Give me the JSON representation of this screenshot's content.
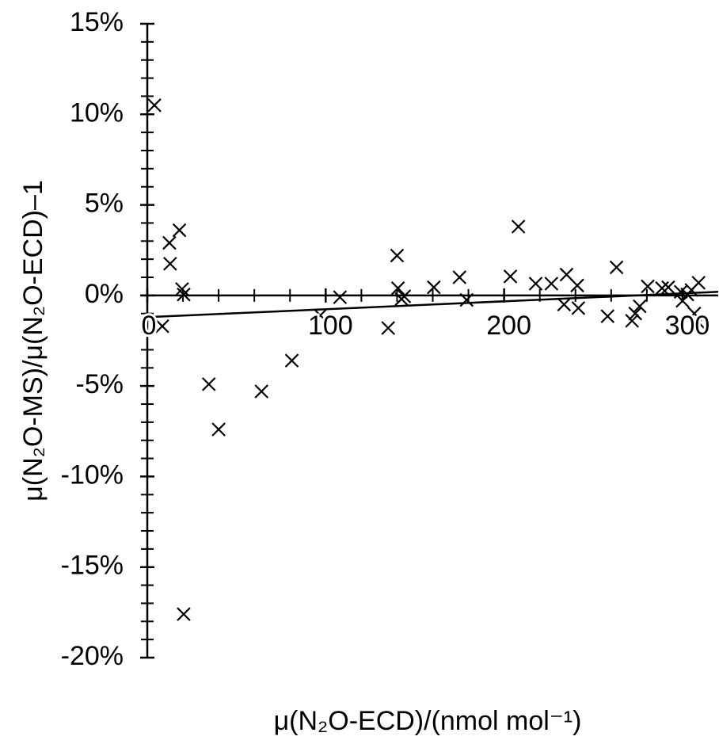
{
  "chart_data": {
    "type": "scatter",
    "x_label": "μ(N₂O-ECD)/(nmol mol⁻¹)",
    "y_label": "μ(N₂O-MS)/μ(N₂O-ECD)–1",
    "xlim": [
      0,
      320
    ],
    "ylim": [
      -20,
      15
    ],
    "xticks": [
      0,
      100,
      200,
      300
    ],
    "yticks": [
      {
        "value": -20,
        "label": "-20%"
      },
      {
        "value": -15,
        "label": "-15%"
      },
      {
        "value": -10,
        "label": "-10%"
      },
      {
        "value": -5,
        "label": "-5%"
      },
      {
        "value": 0,
        "label": "0%"
      },
      {
        "value": 5,
        "label": "5%"
      },
      {
        "value": 10,
        "label": "10%"
      },
      {
        "value": 15,
        "label": "15%"
      }
    ],
    "xminorticks": [
      20,
      40,
      60,
      80,
      120,
      140,
      160,
      180,
      220,
      240,
      260,
      280
    ],
    "yminorticks": [
      -19,
      -18,
      -17,
      -16,
      -14,
      -13,
      -12,
      -11,
      -9,
      -8,
      -7,
      -6,
      -4,
      -3,
      -2,
      -1,
      1,
      2,
      3,
      4,
      6,
      7,
      8,
      9,
      11,
      12,
      13,
      14
    ],
    "color": "#000000",
    "x": [
      4,
      8.4,
      12.4,
      12.8,
      18,
      19.5,
      20.4,
      20.4,
      34.5,
      40,
      64,
      81,
      97,
      108,
      135,
      140,
      140.5,
      142.5,
      144,
      160.6,
      175,
      179,
      203.5,
      208,
      217.7,
      226.5,
      235,
      233.6,
      241,
      241.6,
      258,
      263,
      271.7,
      273.5,
      276,
      280.5,
      288.5,
      292,
      299,
      300,
      302.7,
      305,
      306.6,
      309,
      309
    ],
    "values": [
      10.5,
      -1.7,
      2.9,
      1.75,
      3.6,
      0.35,
      0.05,
      -17.6,
      -4.9,
      -7.4,
      -5.3,
      -3.6,
      -1.1,
      -0.1,
      -1.8,
      2.2,
      0.4,
      -0.2,
      -0.05,
      0.45,
      1.0,
      -0.25,
      1.05,
      3.8,
      0.65,
      0.65,
      1.15,
      -0.5,
      0.55,
      -0.7,
      -1.15,
      1.55,
      -1.4,
      -1.0,
      -0.6,
      0.5,
      0.4,
      0.45,
      0.2,
      -0.3,
      0.05,
      0.3,
      -1.0,
      -1.5,
      0.7
    ],
    "trend_line": {
      "x": [
        0,
        320
      ],
      "values": [
        -1.2,
        0.2
      ]
    }
  }
}
